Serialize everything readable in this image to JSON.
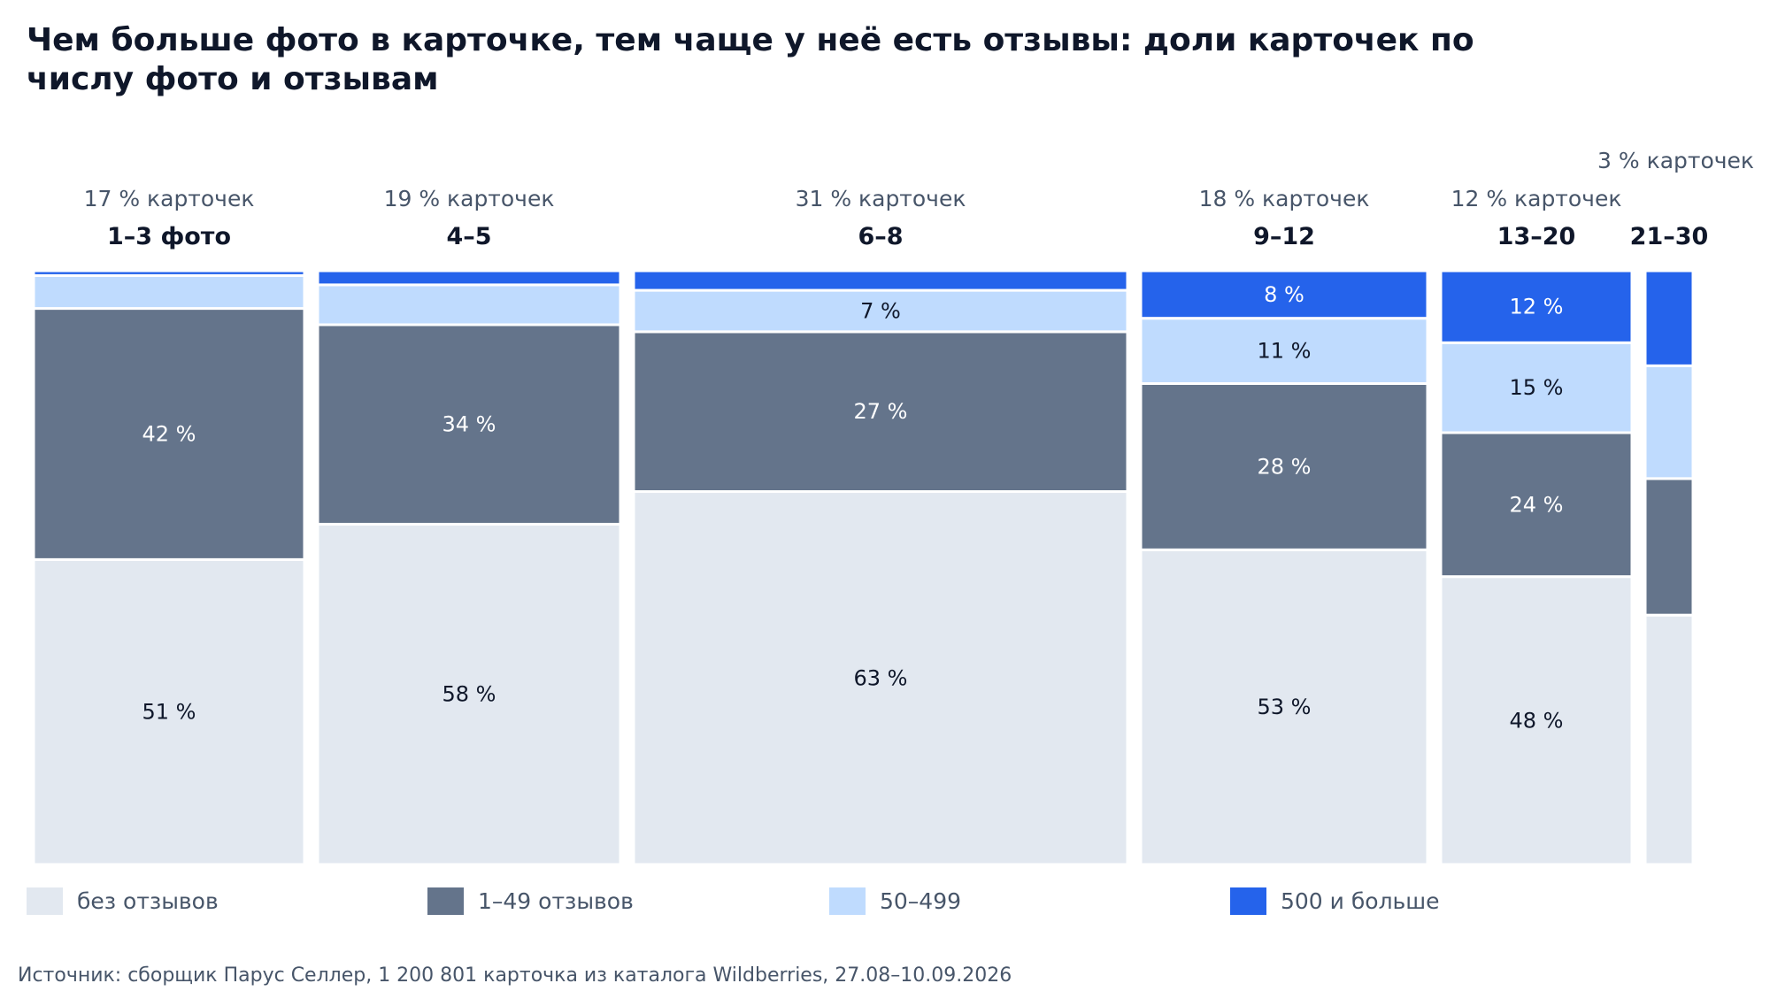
{
  "chart_data": {
    "type": "marimekko",
    "title": "Чем больше фото в карточке, тем чаще у неё есть отзывы: доли карточек по числу фото и отзывам",
    "source": "Источник: сборщик Парус Селлер, 1 200 801 карточка из каталога Wildberries, 27.08–10.09.2026",
    "series": [
      {
        "name": "без отзывов",
        "color": "#e2e8f0",
        "label_color": "#0f172a"
      },
      {
        "name": "1–49 отзывов",
        "color": "#64748b",
        "label_color": "#ffffff"
      },
      {
        "name": "50–499",
        "color": "#bfdbfe",
        "label_color": "#0f172a"
      },
      {
        "name": "500 и больше",
        "color": "#2563eb",
        "label_color": "#ffffff"
      }
    ],
    "columns": [
      {
        "category": "1–3 фото",
        "share_label": "17 % карточек",
        "width_share": 17,
        "values": [
          51,
          42,
          5.5,
          0.8
        ],
        "labels": [
          "51 %",
          "42 %",
          "",
          ""
        ]
      },
      {
        "category": "4–5",
        "share_label": "19 % карточек",
        "width_share": 19,
        "values": [
          58,
          34,
          6.8,
          2.4
        ],
        "labels": [
          "58 %",
          "34 %",
          "",
          ""
        ]
      },
      {
        "category": "6–8",
        "share_label": "31 % карточек",
        "width_share": 31,
        "values": [
          63,
          27,
          7,
          3.3
        ],
        "labels": [
          "63 %",
          "27 %",
          "7 %",
          ""
        ]
      },
      {
        "category": "9–12",
        "share_label": "18 % карточек",
        "width_share": 18,
        "values": [
          53,
          28,
          11,
          8
        ],
        "labels": [
          "53 %",
          "28 %",
          "11 %",
          "8 %"
        ]
      },
      {
        "category": "13–20",
        "share_label": "12 % карточек",
        "width_share": 12,
        "values": [
          48,
          24,
          15,
          12
        ],
        "labels": [
          "48 %",
          "24 %",
          "15 %",
          "12 %"
        ]
      },
      {
        "category": "21–30",
        "share_label": "3 % карточек",
        "width_share": 3,
        "values": [
          42,
          23,
          19,
          16
        ],
        "labels": [
          "",
          "",
          "",
          ""
        ]
      }
    ]
  }
}
